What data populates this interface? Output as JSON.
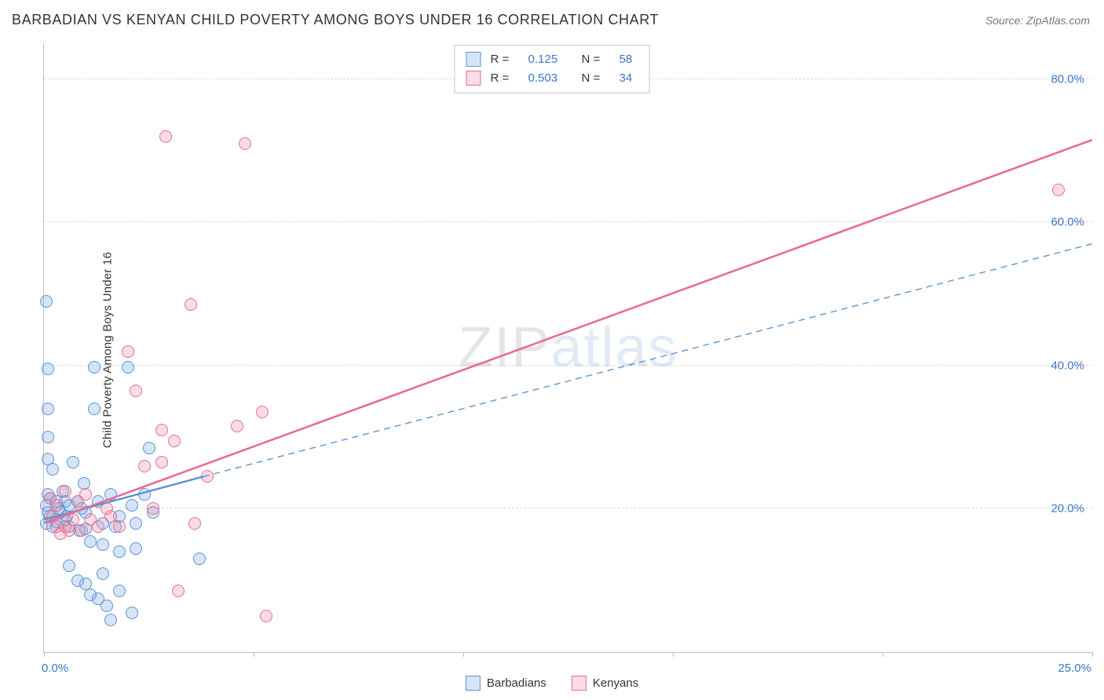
{
  "title": "BARBADIAN VS KENYAN CHILD POVERTY AMONG BOYS UNDER 16 CORRELATION CHART",
  "source_label": "Source: ZipAtlas.com",
  "ylabel": "Child Poverty Among Boys Under 16",
  "watermark": {
    "part1": "ZIP",
    "part2": "atlas"
  },
  "chart": {
    "type": "scatter",
    "background_color": "#ffffff",
    "grid_color": "#dcdcdc",
    "axis_color": "#bfbfbf",
    "tick_color": "#3b76c4",
    "xlim": [
      0,
      25
    ],
    "ylim": [
      0,
      85
    ],
    "xticks": [
      0,
      5,
      10,
      15,
      20,
      25
    ],
    "xtick_labels": [
      "0.0%",
      "",
      "",
      "",
      "",
      "25.0%"
    ],
    "yticks": [
      20,
      40,
      60,
      80
    ],
    "ytick_labels": [
      "20.0%",
      "40.0%",
      "60.0%",
      "80.0%"
    ],
    "marker_radius": 8,
    "marker_border_width": 1.2,
    "marker_fill_opacity": 0.28,
    "series": [
      {
        "name": "Barbadians",
        "color": "#5a93d4",
        "fill": "rgba(120,170,225,0.30)",
        "R": "0.125",
        "N": "58",
        "regression": {
          "x1": 0,
          "y1": 18.5,
          "x2": 3.8,
          "y2": 24.5,
          "stroke_width": 2.4
        },
        "extrapolation": {
          "x1": 3.8,
          "y1": 24.5,
          "x2": 25,
          "y2": 57.0,
          "dash": "8,6",
          "stroke_width": 1.4
        },
        "points": [
          [
            0.05,
            49.0
          ],
          [
            0.1,
            39.5
          ],
          [
            0.1,
            34.0
          ],
          [
            0.1,
            30.0
          ],
          [
            0.1,
            27.0
          ],
          [
            0.2,
            25.5
          ],
          [
            0.1,
            22.0
          ],
          [
            0.15,
            21.5
          ],
          [
            0.05,
            20.5
          ],
          [
            0.1,
            19.5
          ],
          [
            0.15,
            19.0
          ],
          [
            0.05,
            18.0
          ],
          [
            0.2,
            17.5
          ],
          [
            0.3,
            21.0
          ],
          [
            0.35,
            20.0
          ],
          [
            0.4,
            19.5
          ],
          [
            0.3,
            18.2
          ],
          [
            0.45,
            22.5
          ],
          [
            0.5,
            21.0
          ],
          [
            0.5,
            18.5
          ],
          [
            0.6,
            20.5
          ],
          [
            0.55,
            19.0
          ],
          [
            0.6,
            17.5
          ],
          [
            0.7,
            26.5
          ],
          [
            0.8,
            21.0
          ],
          [
            0.85,
            17.0
          ],
          [
            0.9,
            20.0
          ],
          [
            0.95,
            23.5
          ],
          [
            1.0,
            19.5
          ],
          [
            1.0,
            17.2
          ],
          [
            1.1,
            15.5
          ],
          [
            1.2,
            39.8
          ],
          [
            1.2,
            34.0
          ],
          [
            1.3,
            21.0
          ],
          [
            1.4,
            18.0
          ],
          [
            1.4,
            15.0
          ],
          [
            1.6,
            22.0
          ],
          [
            1.7,
            17.5
          ],
          [
            1.8,
            19.0
          ],
          [
            1.8,
            14.0
          ],
          [
            2.0,
            39.8
          ],
          [
            2.1,
            20.5
          ],
          [
            2.2,
            18.0
          ],
          [
            2.2,
            14.5
          ],
          [
            2.4,
            22.0
          ],
          [
            2.5,
            28.5
          ],
          [
            2.6,
            19.5
          ],
          [
            0.6,
            12.0
          ],
          [
            0.8,
            10.0
          ],
          [
            1.0,
            9.5
          ],
          [
            1.1,
            8.0
          ],
          [
            1.3,
            7.5
          ],
          [
            1.4,
            11.0
          ],
          [
            1.5,
            6.5
          ],
          [
            1.6,
            4.5
          ],
          [
            1.8,
            8.5
          ],
          [
            2.1,
            5.5
          ],
          [
            3.7,
            13.0
          ]
        ]
      },
      {
        "name": "Kenyans",
        "color": "#e76c96",
        "fill": "rgba(236,140,170,0.30)",
        "R": "0.503",
        "N": "34",
        "regression": {
          "x1": 0,
          "y1": 18.0,
          "x2": 25,
          "y2": 71.5,
          "stroke_width": 2.6
        },
        "points": [
          [
            0.15,
            21.5
          ],
          [
            0.2,
            19.0
          ],
          [
            0.3,
            20.5
          ],
          [
            0.3,
            17.5
          ],
          [
            0.4,
            16.5
          ],
          [
            0.5,
            22.5
          ],
          [
            0.5,
            17.5
          ],
          [
            0.6,
            17.0
          ],
          [
            0.7,
            18.5
          ],
          [
            0.8,
            21.0
          ],
          [
            0.9,
            17.0
          ],
          [
            1.0,
            22.0
          ],
          [
            1.1,
            18.5
          ],
          [
            1.3,
            17.5
          ],
          [
            1.5,
            20.0
          ],
          [
            1.6,
            19.0
          ],
          [
            1.8,
            17.5
          ],
          [
            2.0,
            42.0
          ],
          [
            2.2,
            36.5
          ],
          [
            2.4,
            26.0
          ],
          [
            2.6,
            20.0
          ],
          [
            2.8,
            31.0
          ],
          [
            2.8,
            26.5
          ],
          [
            3.1,
            29.5
          ],
          [
            3.5,
            48.5
          ],
          [
            3.6,
            18.0
          ],
          [
            3.9,
            24.5
          ],
          [
            4.6,
            31.5
          ],
          [
            5.2,
            33.5
          ],
          [
            2.9,
            72.0
          ],
          [
            4.8,
            71.0
          ],
          [
            3.2,
            8.5
          ],
          [
            5.3,
            5.0
          ],
          [
            24.2,
            64.5
          ]
        ]
      }
    ],
    "legend_bottom": [
      {
        "label": "Barbadians",
        "series": 0
      },
      {
        "label": "Kenyans",
        "series": 1
      }
    ]
  }
}
